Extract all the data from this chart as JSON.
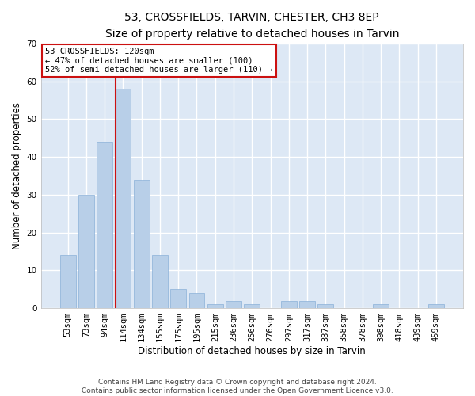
{
  "title": "53, CROSSFIELDS, TARVIN, CHESTER, CH3 8EP",
  "subtitle": "Size of property relative to detached houses in Tarvin",
  "xlabel": "Distribution of detached houses by size in Tarvin",
  "ylabel": "Number of detached properties",
  "categories": [
    "53sqm",
    "73sqm",
    "94sqm",
    "114sqm",
    "134sqm",
    "155sqm",
    "175sqm",
    "195sqm",
    "215sqm",
    "236sqm",
    "256sqm",
    "276sqm",
    "297sqm",
    "317sqm",
    "337sqm",
    "358sqm",
    "378sqm",
    "398sqm",
    "418sqm",
    "439sqm",
    "459sqm"
  ],
  "values": [
    14,
    30,
    44,
    58,
    34,
    14,
    5,
    4,
    1,
    2,
    1,
    0,
    2,
    2,
    1,
    0,
    0,
    1,
    0,
    0,
    1
  ],
  "bar_color": "#b8cfe8",
  "bar_edge_color": "#8ab0d8",
  "highlight_index": 3,
  "highlight_color": "#cc1111",
  "annotation_text": "53 CROSSFIELDS: 120sqm\n← 47% of detached houses are smaller (100)\n52% of semi-detached houses are larger (110) →",
  "annotation_box_color": "white",
  "annotation_box_edge": "#cc1111",
  "ylim": [
    0,
    70
  ],
  "yticks": [
    0,
    10,
    20,
    30,
    40,
    50,
    60,
    70
  ],
  "background_color": "#dde8f5",
  "grid_color": "white",
  "footer": "Contains HM Land Registry data © Crown copyright and database right 2024.\nContains public sector information licensed under the Open Government Licence v3.0.",
  "title_fontsize": 10,
  "subtitle_fontsize": 9.5,
  "axis_label_fontsize": 8.5,
  "tick_fontsize": 7.5,
  "footer_fontsize": 6.5
}
